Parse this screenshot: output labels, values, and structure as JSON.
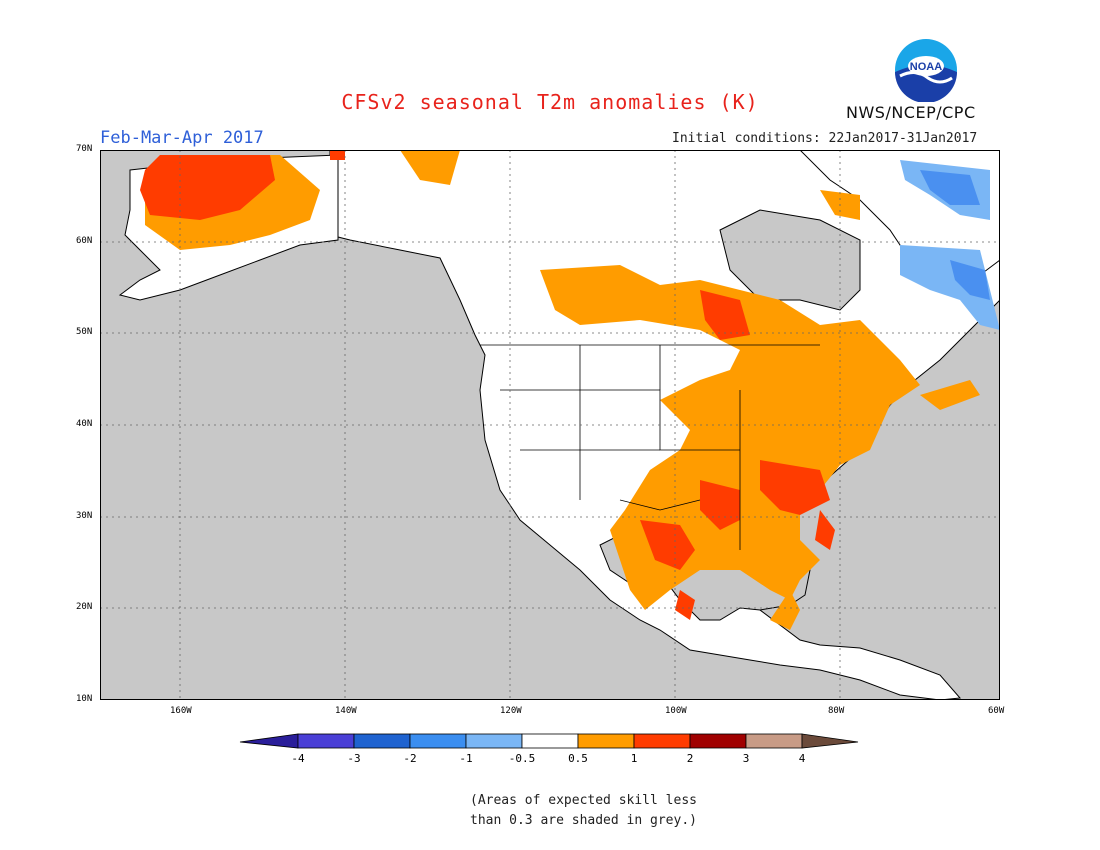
{
  "header": {
    "title": "CFSv2 seasonal T2m anomalies (K)",
    "season": "Feb-Mar-Apr 2017",
    "initial_conditions": "Initial conditions: 22Jan2017-31Jan2017",
    "agency": "NWS/NCEP/CPC",
    "logo_text": "NOAA"
  },
  "map": {
    "lon_labels": [
      "160W",
      "140W",
      "120W",
      "100W",
      "80W",
      "60W"
    ],
    "lat_labels": [
      "70N",
      "60N",
      "50N",
      "40N",
      "30N",
      "20N",
      "10N"
    ],
    "colors": {
      "land_white": "#ffffff",
      "low_skill_grey": "#c8c8c8",
      "warm_0_5_to_1": "#ff9c00",
      "warm_1_to_2": "#ff3c00",
      "cool_minus1_to_minus0_5": "#7ab6f5",
      "cool_minus2_to_minus1": "#4a90f0"
    }
  },
  "legend": {
    "labels": [
      "-4",
      "-3",
      "-2",
      "-1",
      "-0.5",
      "0.5",
      "1",
      "2",
      "3",
      "4"
    ],
    "colors": [
      "#2a1e9a",
      "#4a3fd6",
      "#1f63d0",
      "#3b8ef0",
      "#7ab6f5",
      "#ffffff",
      "#ff9c00",
      "#ff3c00",
      "#a00000",
      "#c89b86",
      "#6b4a3a"
    ]
  },
  "note": {
    "line1": "(Areas of expected skill less",
    "line2": "than 0.3 are shaded in grey.)"
  }
}
